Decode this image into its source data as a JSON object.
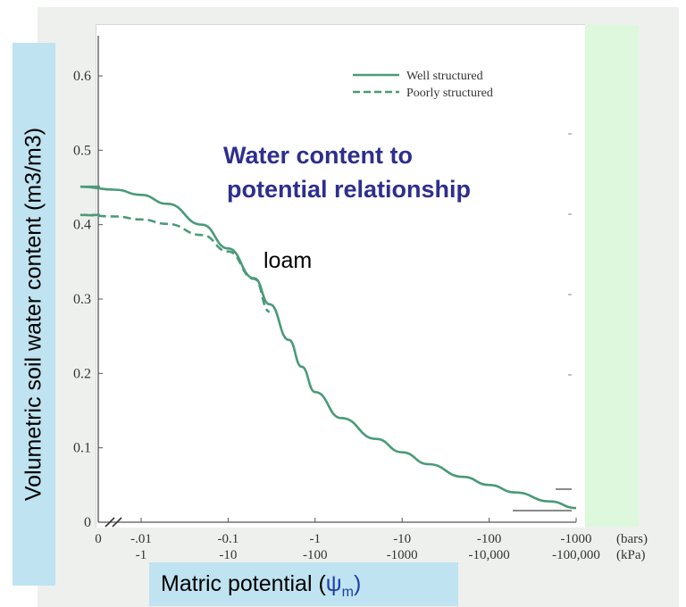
{
  "chart_data": {
    "type": "line",
    "title": "",
    "annotation_title": [
      "Water content to",
      "potential relationship"
    ],
    "annotation_soil": "loam",
    "ylabel": "Volumetric soil water content (m3/m3)",
    "xlabel": {
      "prefix": "Matric potential (",
      "psi": "ψ",
      "sub": "m",
      "suffix": ")"
    },
    "ylim": [
      0,
      0.65
    ],
    "yticks": [
      "0",
      "0.1",
      "0.2",
      "0.3",
      "0.4",
      "0.5",
      "0.6"
    ],
    "x_scale": "log",
    "x_ticks_bars": [
      "0",
      "-.01",
      "-0.1",
      "-1",
      "-10",
      "-100",
      "-1000"
    ],
    "x_ticks_kpa": [
      "-1",
      "-10",
      "-100",
      "-1000",
      "-10,000",
      "-100,000"
    ],
    "x_unit_bars": "(bars)",
    "x_unit_kpa": "(kPa)",
    "legend_position": "top-right",
    "series": [
      {
        "name": "Well structured",
        "style": "solid",
        "color": "#4a9a78",
        "x_bars": [
          -0.002,
          -0.005,
          -0.01,
          -0.02,
          -0.05,
          -0.1,
          -0.2,
          -0.3,
          -0.5,
          -0.7,
          -1,
          -2,
          -5,
          -10,
          -20,
          -50,
          -100,
          -200,
          -500,
          -1000
        ],
        "values": [
          0.451,
          0.447,
          0.44,
          0.428,
          0.4,
          0.368,
          0.328,
          0.293,
          0.245,
          0.209,
          0.175,
          0.14,
          0.112,
          0.094,
          0.078,
          0.061,
          0.05,
          0.04,
          0.028,
          0.019
        ]
      },
      {
        "name": "Poorly structured",
        "style": "dashed",
        "color": "#4a9a78",
        "x_bars": [
          -0.002,
          -0.005,
          -0.01,
          -0.02,
          -0.05,
          -0.1,
          -0.2,
          -0.3
        ],
        "values": [
          0.413,
          0.411,
          0.407,
          0.401,
          0.386,
          0.364,
          0.327,
          0.283
        ]
      }
    ]
  }
}
